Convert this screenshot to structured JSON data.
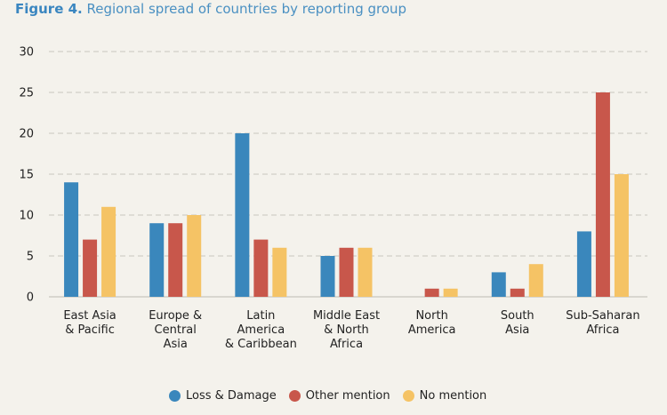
{
  "title": {
    "lead": "Figure 4.",
    "text": "Regional spread of countries by reporting group"
  },
  "colors": {
    "loss": "#3a87bc",
    "other": "#c8574b",
    "none": "#f5c365",
    "grid": "#c9c6be"
  },
  "chart_data": {
    "type": "bar",
    "title": "Figure 4. Regional spread of countries by reporting group",
    "categories": [
      [
        "East Asia",
        "& Pacific"
      ],
      [
        "Europe &",
        "Central",
        "Asia"
      ],
      [
        "Latin",
        "America",
        "& Caribbean"
      ],
      [
        "Middle East",
        "& North",
        "Africa"
      ],
      [
        "North",
        "America"
      ],
      [
        "South",
        "Asia"
      ],
      [
        "Sub-Saharan",
        "Africa"
      ]
    ],
    "series": [
      {
        "name": "Loss & Damage",
        "color": "#3a87bc",
        "values": [
          14,
          9,
          20,
          5,
          0,
          3,
          8
        ]
      },
      {
        "name": "Other mention",
        "color": "#c8574b",
        "values": [
          7,
          9,
          7,
          6,
          1,
          1,
          25
        ]
      },
      {
        "name": "No mention",
        "color": "#f5c365",
        "values": [
          11,
          10,
          6,
          6,
          1,
          4,
          15
        ]
      }
    ],
    "ylim": [
      0,
      30
    ],
    "yticks": [
      0,
      5,
      10,
      15,
      20,
      25,
      30
    ],
    "grid": true,
    "legend": "bottom-center"
  }
}
